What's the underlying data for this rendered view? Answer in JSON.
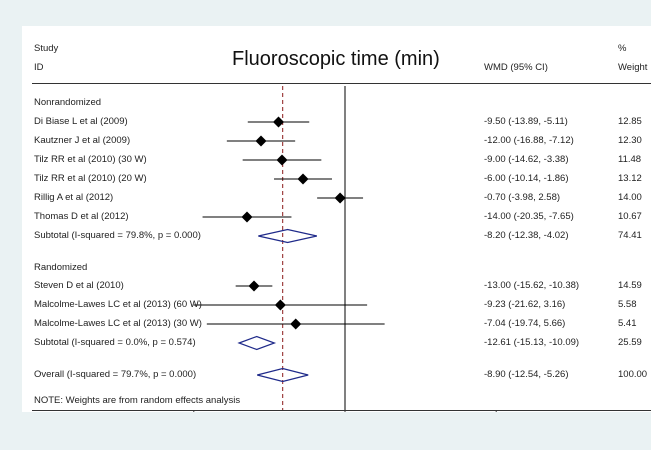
{
  "header": {
    "study_line1": "Study",
    "study_line2": "ID",
    "title": "Fluoroscopic time (min)",
    "wmd_header": "WMD (95% CI)",
    "pct_line1": "%",
    "pct_line2": "Weight"
  },
  "groups": {
    "nonrandomized": "Nonrandomized",
    "randomized": "Randomized"
  },
  "note": "NOTE: Weights are from random effects analysis",
  "colors": {
    "background": "#eaf2f3",
    "panel": "#ffffff",
    "diamond_outline": "#1f2a8a",
    "null_line": "#000000",
    "overall_line": "#8b1a1a",
    "marker": "#000000"
  },
  "chart_data": {
    "type": "forest",
    "measure": "WMD (95% CI)",
    "overall_estimate": -8.9,
    "null_value": 0,
    "xticks": [
      -21.6,
      0,
      21.6
    ],
    "xtick_labels": [
      "-21.6",
      "0",
      "21.6"
    ],
    "xlim": [
      -39.5,
      43.2
    ],
    "rows": [
      {
        "kind": "study",
        "label": "Di Biase L et al (2009)",
        "est": -9.5,
        "lo": -13.89,
        "hi": -5.11,
        "ci_text": "-9.50 (-13.89, -5.11)",
        "weight": "12.85"
      },
      {
        "kind": "study",
        "label": "Kautzner J et al (2009)",
        "est": -12.0,
        "lo": -16.88,
        "hi": -7.12,
        "ci_text": "-12.00 (-16.88, -7.12)",
        "weight": "12.30"
      },
      {
        "kind": "study",
        "label": "Tilz RR et al (2010) (30 W)",
        "est": -9.0,
        "lo": -14.62,
        "hi": -3.38,
        "ci_text": "-9.00 (-14.62, -3.38)",
        "weight": "11.48"
      },
      {
        "kind": "study",
        "label": "Tilz RR et al (2010) (20 W)",
        "est": -6.0,
        "lo": -10.14,
        "hi": -1.86,
        "ci_text": "-6.00 (-10.14, -1.86)",
        "weight": "13.12"
      },
      {
        "kind": "study",
        "label": "Rillig A et al (2012)",
        "est": -0.7,
        "lo": -3.98,
        "hi": 2.58,
        "ci_text": "-0.70 (-3.98, 2.58)",
        "weight": "14.00"
      },
      {
        "kind": "study",
        "label": "Thomas D et al (2012)",
        "est": -14.0,
        "lo": -20.35,
        "hi": -7.65,
        "ci_text": "-14.00 (-20.35, -7.65)",
        "weight": "10.67"
      },
      {
        "kind": "subtotal",
        "label": "Subtotal  (I-squared = 79.8%, p = 0.000)",
        "est": -8.2,
        "lo": -12.38,
        "hi": -4.02,
        "ci_text": "-8.20 (-12.38, -4.02)",
        "weight": "74.41"
      },
      {
        "kind": "study",
        "label": "Steven D et al (2010)",
        "est": -13.0,
        "lo": -15.62,
        "hi": -10.38,
        "ci_text": "-13.00 (-15.62, -10.38)",
        "weight": "14.59"
      },
      {
        "kind": "study",
        "label": "Malcolme-Lawes LC et al (2013) (60 W)",
        "est": -9.23,
        "lo": -21.62,
        "hi": 3.16,
        "ci_text": "-9.23 (-21.62, 3.16)",
        "weight": "5.58"
      },
      {
        "kind": "study",
        "label": "Malcolme-Lawes LC et al (2013) (30 W)",
        "est": -7.04,
        "lo": -19.74,
        "hi": 5.66,
        "ci_text": "-7.04 (-19.74, 5.66)",
        "weight": "5.41"
      },
      {
        "kind": "subtotal",
        "label": "Subtotal  (I-squared = 0.0%, p = 0.574)",
        "est": -12.61,
        "lo": -15.13,
        "hi": -10.09,
        "ci_text": "-12.61 (-15.13, -10.09)",
        "weight": "25.59"
      },
      {
        "kind": "overall",
        "label": "Overall  (I-squared = 79.7%, p = 0.000)",
        "est": -8.9,
        "lo": -12.54,
        "hi": -5.26,
        "ci_text": "-8.90 (-12.54, -5.26)",
        "weight": "100.00"
      }
    ]
  }
}
